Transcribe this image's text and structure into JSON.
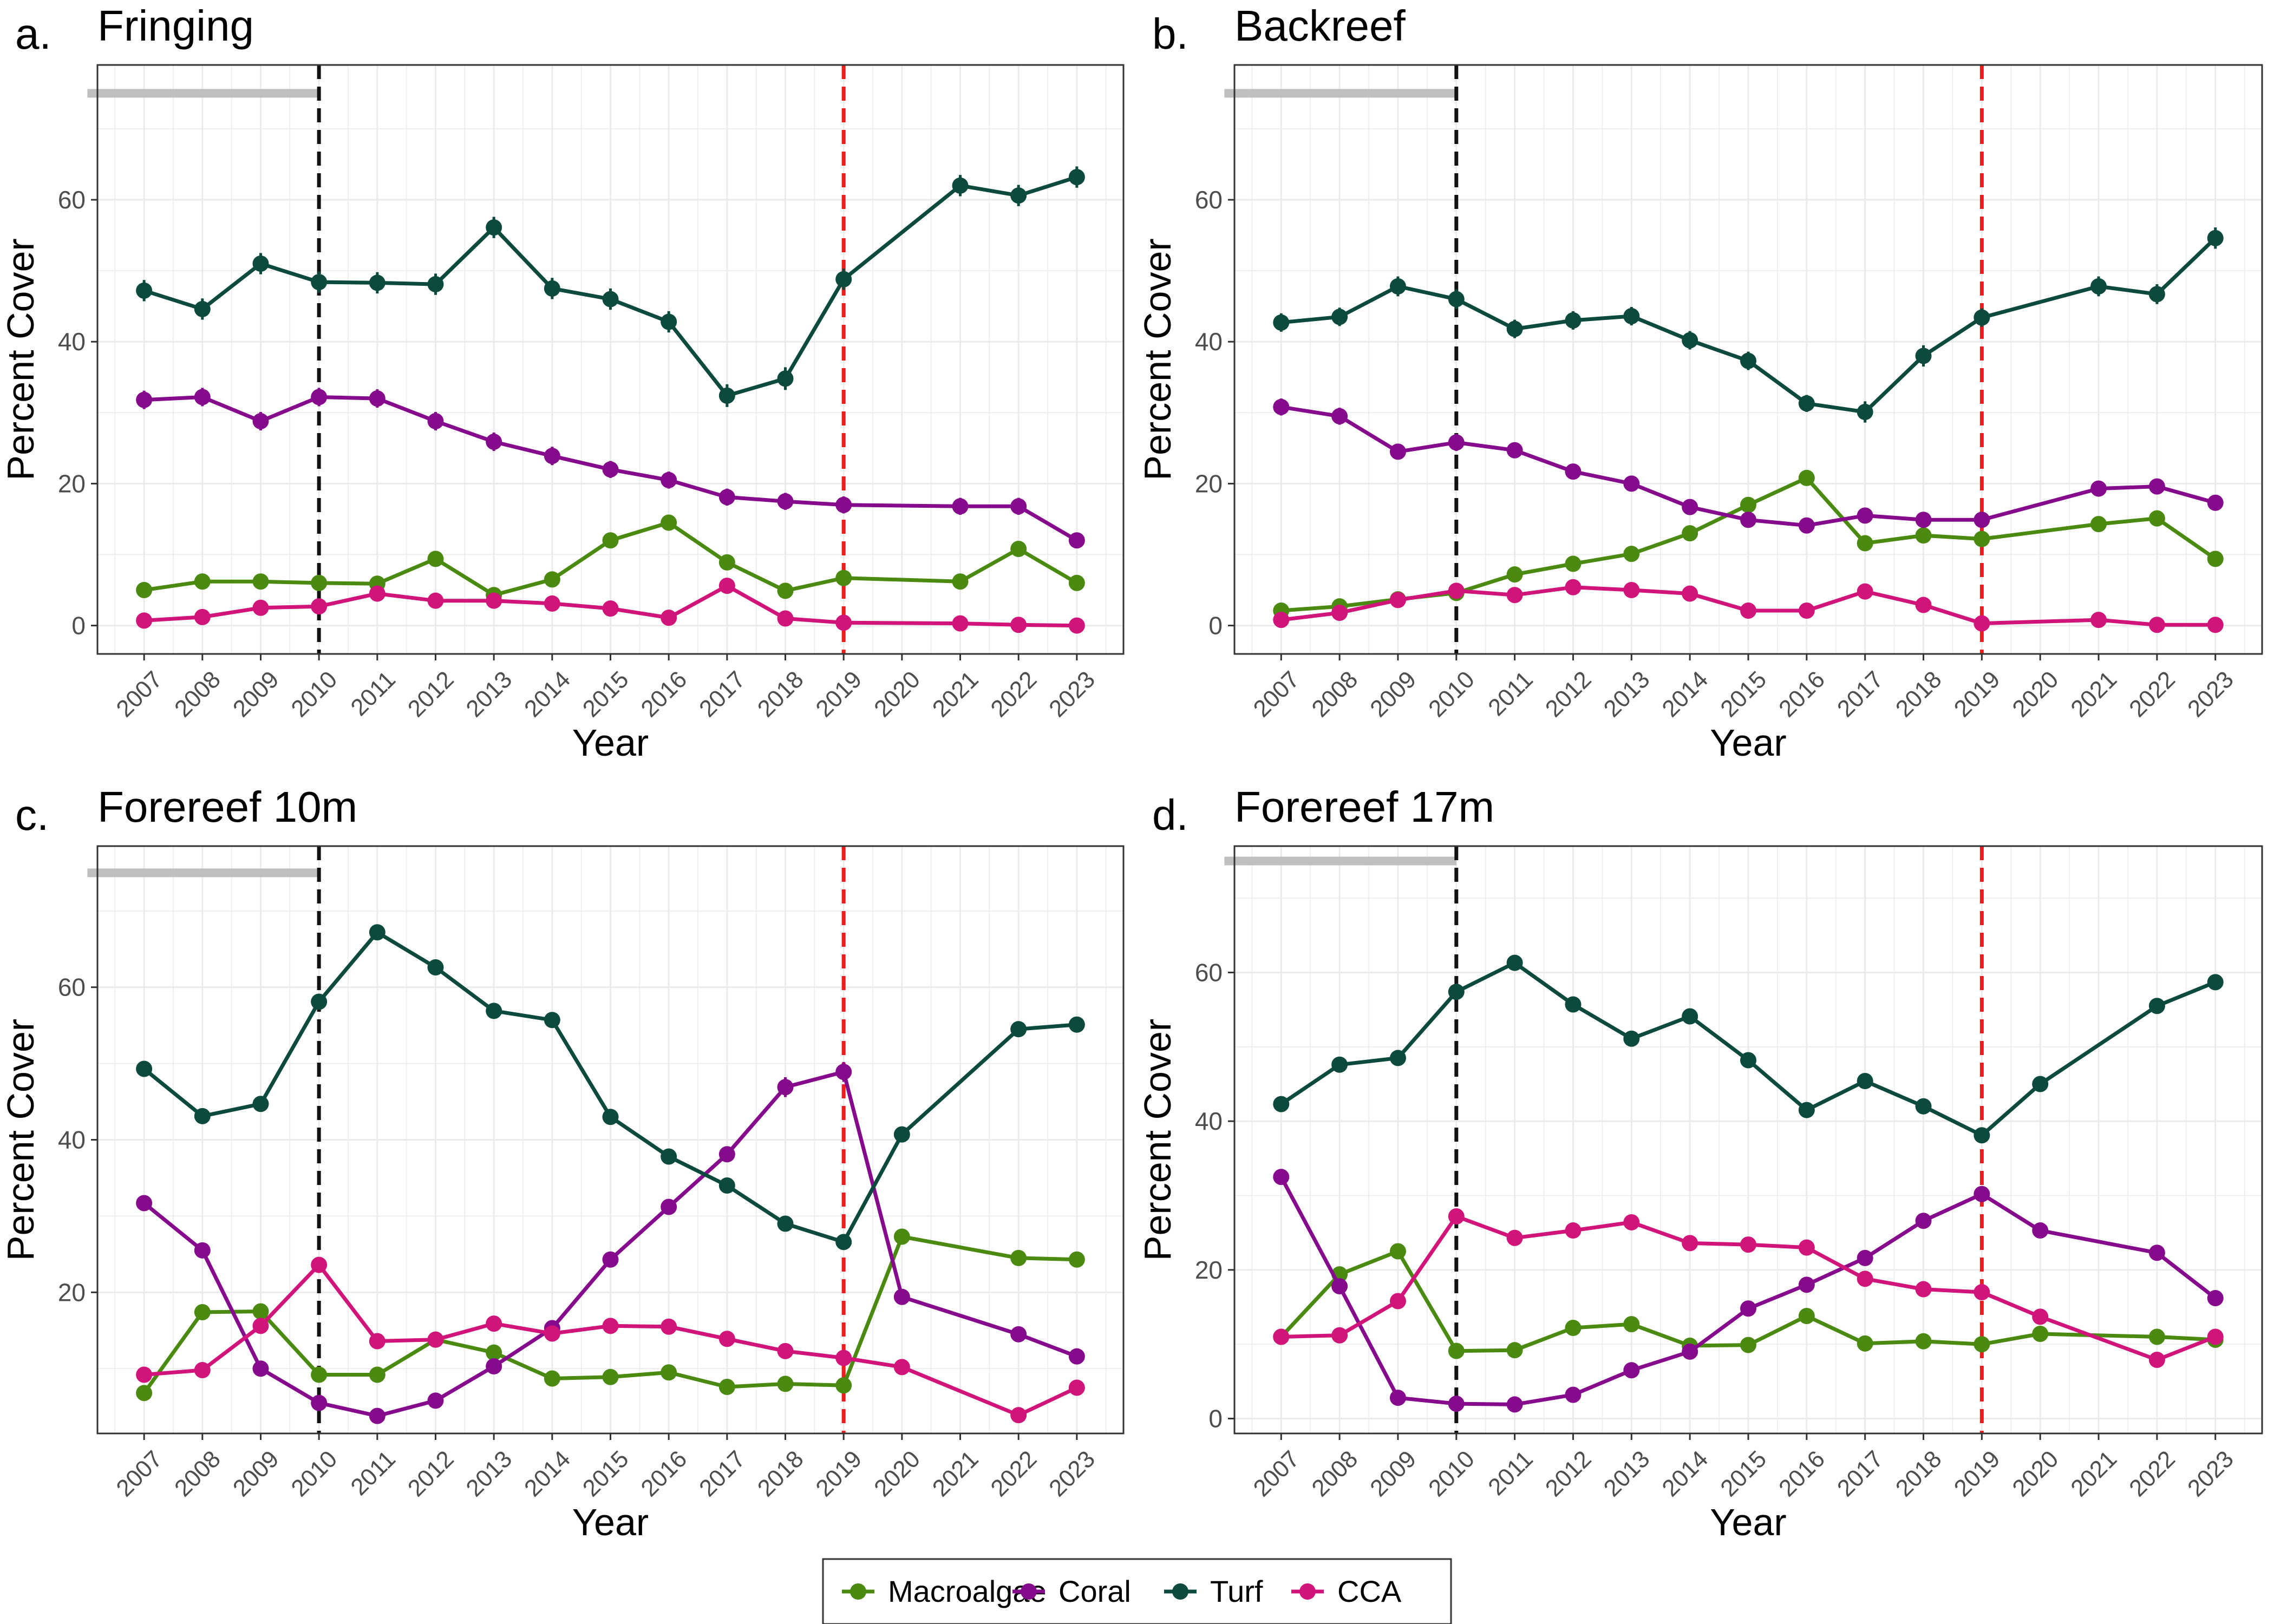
{
  "colors": {
    "series": {
      "Macroalgae": "#4a8a10",
      "Coral": "#860a8c",
      "Turf": "#0c4a3e",
      "CCA": "#d0147a"
    },
    "disturbance_line": "#111111",
    "event_line": "#ee1c1c",
    "period_bar": "#bfbfbf",
    "grid": "#ebebeb",
    "panel_border": "#333333"
  },
  "legend": {
    "position": "bottom-center",
    "entries": [
      "Macroalgae",
      "Coral",
      "Turf",
      "CCA"
    ]
  },
  "chart_data": [
    {
      "type": "line",
      "panel_letter": "a.",
      "title": "Fringing",
      "xlabel": "Year",
      "ylabel": "Percent Cover",
      "ylim": [
        -4,
        79
      ],
      "yticks": [
        0,
        20,
        40,
        60
      ],
      "xlim": [
        2006.2,
        2023.8
      ],
      "xticks": [
        "2007",
        "2008",
        "2009",
        "2010",
        "2011",
        "2012",
        "2013",
        "2014",
        "2015",
        "2016",
        "2017",
        "2018",
        "2019",
        "2020",
        "2021",
        "2022",
        "2023"
      ],
      "grid": true,
      "vlines": {
        "black_dashed": 2010,
        "red_dashed": 2019
      },
      "period_bar": {
        "x_start": 2006,
        "x_end": 2010,
        "y": 75
      },
      "series": [
        {
          "name": "Macroalgae",
          "x": [
            2007,
            2008,
            2009,
            2010,
            2011,
            2012,
            2013,
            2014,
            2015,
            2016,
            2017,
            2018,
            2019,
            2021,
            2022,
            2023
          ],
          "values": [
            5,
            6.2,
            6.2,
            6,
            5.9,
            9.4,
            4.3,
            6.5,
            12,
            14.5,
            8.9,
            4.9,
            6.7,
            6.2,
            10.8,
            6
          ],
          "error": [
            0.6,
            0.6,
            0.6,
            0.6,
            0.6,
            0.8,
            0.5,
            0.6,
            0.8,
            0.8,
            0.7,
            0.5,
            0.6,
            0.6,
            0.8,
            0.6
          ]
        },
        {
          "name": "Coral",
          "x": [
            2007,
            2008,
            2009,
            2010,
            2011,
            2012,
            2013,
            2014,
            2015,
            2016,
            2017,
            2018,
            2019,
            2021,
            2022,
            2023
          ],
          "values": [
            31.8,
            32.2,
            28.8,
            32.2,
            32,
            28.8,
            25.9,
            23.9,
            22,
            20.5,
            18.1,
            17.5,
            17,
            16.8,
            16.8,
            12
          ],
          "error": [
            1.3,
            1.3,
            1.3,
            1.3,
            1.3,
            1.3,
            1.3,
            1.3,
            1.2,
            1.2,
            1.2,
            1.2,
            1.2,
            1.2,
            1.2,
            1.0
          ]
        },
        {
          "name": "Turf",
          "x": [
            2007,
            2008,
            2009,
            2010,
            2011,
            2012,
            2013,
            2014,
            2015,
            2016,
            2017,
            2018,
            2019,
            2021,
            2022,
            2023
          ],
          "values": [
            47.2,
            44.6,
            51,
            48.4,
            48.3,
            48.1,
            56.1,
            47.5,
            46,
            42.8,
            32.4,
            34.8,
            48.8,
            62,
            60.6,
            63.2
          ],
          "error": [
            1.5,
            1.5,
            1.5,
            1.5,
            1.5,
            1.5,
            1.5,
            1.5,
            1.5,
            1.5,
            1.6,
            1.6,
            1.5,
            1.5,
            1.5,
            1.5
          ]
        },
        {
          "name": "CCA",
          "x": [
            2007,
            2008,
            2009,
            2010,
            2011,
            2012,
            2013,
            2014,
            2015,
            2016,
            2017,
            2018,
            2019,
            2021,
            2022,
            2023
          ],
          "values": [
            0.7,
            1.2,
            2.5,
            2.7,
            4.5,
            3.5,
            3.5,
            3.1,
            2.4,
            1.1,
            5.6,
            1,
            0.4,
            0.3,
            0.1,
            0
          ],
          "error": [
            0.3,
            0.3,
            0.4,
            0.4,
            0.5,
            0.4,
            0.4,
            0.4,
            0.4,
            0.3,
            0.5,
            0.3,
            0.2,
            0.2,
            0.1,
            0.1
          ]
        }
      ]
    },
    {
      "type": "line",
      "panel_letter": "b.",
      "title": "Backreef",
      "xlabel": "Year",
      "ylabel": "Percent Cover",
      "ylim": [
        -4,
        79
      ],
      "yticks": [
        0,
        20,
        40,
        60
      ],
      "xlim": [
        2006.2,
        2023.8
      ],
      "xticks": [
        "2007",
        "2008",
        "2009",
        "2010",
        "2011",
        "2012",
        "2013",
        "2014",
        "2015",
        "2016",
        "2017",
        "2018",
        "2019",
        "2020",
        "2021",
        "2022",
        "2023"
      ],
      "grid": true,
      "vlines": {
        "black_dashed": 2010,
        "red_dashed": 2019
      },
      "period_bar": {
        "x_start": 2006,
        "x_end": 2010,
        "y": 75
      },
      "series": [
        {
          "name": "Macroalgae",
          "x": [
            2007,
            2008,
            2009,
            2010,
            2011,
            2012,
            2013,
            2014,
            2015,
            2016,
            2017,
            2018,
            2019,
            2021,
            2022,
            2023
          ],
          "values": [
            2.1,
            2.7,
            3.7,
            4.6,
            7.2,
            8.7,
            10.1,
            13,
            17,
            20.8,
            11.6,
            12.7,
            12.2,
            14.3,
            15.1,
            9.4
          ],
          "error": [
            0.4,
            0.4,
            0.5,
            0.5,
            0.6,
            0.6,
            0.7,
            0.7,
            0.8,
            0.9,
            0.7,
            0.7,
            0.7,
            0.7,
            0.8,
            0.7
          ]
        },
        {
          "name": "Coral",
          "x": [
            2007,
            2008,
            2009,
            2010,
            2011,
            2012,
            2013,
            2014,
            2015,
            2016,
            2017,
            2018,
            2019,
            2021,
            2022,
            2023
          ],
          "values": [
            30.8,
            29.5,
            24.5,
            25.8,
            24.7,
            21.7,
            20,
            16.7,
            14.9,
            14.1,
            15.5,
            14.9,
            14.9,
            19.3,
            19.6,
            17.3
          ],
          "error": [
            1.2,
            1.2,
            1.1,
            1.2,
            1.1,
            1.1,
            1.0,
            1.0,
            0.9,
            0.9,
            0.9,
            0.9,
            0.9,
            1.0,
            1.0,
            1.0
          ]
        },
        {
          "name": "Turf",
          "x": [
            2007,
            2008,
            2009,
            2010,
            2011,
            2012,
            2013,
            2014,
            2015,
            2016,
            2017,
            2018,
            2019,
            2021,
            2022,
            2023
          ],
          "values": [
            42.7,
            43.5,
            47.8,
            46,
            41.8,
            43,
            43.6,
            40.2,
            37.3,
            31.3,
            30.1,
            38,
            43.4,
            47.8,
            46.7,
            54.6
          ],
          "error": [
            1.3,
            1.3,
            1.4,
            1.4,
            1.3,
            1.3,
            1.3,
            1.3,
            1.3,
            1.2,
            1.5,
            1.5,
            1.3,
            1.4,
            1.4,
            1.5
          ]
        },
        {
          "name": "CCA",
          "x": [
            2007,
            2008,
            2009,
            2010,
            2011,
            2012,
            2013,
            2014,
            2015,
            2016,
            2017,
            2018,
            2019,
            2021,
            2022,
            2023
          ],
          "values": [
            0.8,
            1.8,
            3.6,
            4.9,
            4.3,
            5.4,
            5,
            4.5,
            2.1,
            2.1,
            4.8,
            2.9,
            0.3,
            0.8,
            0.1,
            0.1
          ],
          "error": [
            0.3,
            0.4,
            0.5,
            0.5,
            0.5,
            0.5,
            0.5,
            0.5,
            0.4,
            0.4,
            0.5,
            0.4,
            0.2,
            0.3,
            0.1,
            0.1
          ]
        }
      ]
    },
    {
      "type": "line",
      "panel_letter": "c.",
      "title": "Forereef 10m",
      "xlabel": "Year",
      "ylabel": "Percent Cover",
      "ylim": [
        1.5,
        78.5
      ],
      "yticks": [
        20,
        40,
        60
      ],
      "xlim": [
        2006.2,
        2023.8
      ],
      "xticks": [
        "2007",
        "2008",
        "2009",
        "2010",
        "2011",
        "2012",
        "2013",
        "2014",
        "2015",
        "2016",
        "2017",
        "2018",
        "2019",
        "2020",
        "2021",
        "2022",
        "2023"
      ],
      "grid": true,
      "vlines": {
        "black_dashed": 2010,
        "red_dashed": 2019
      },
      "period_bar": {
        "x_start": 2006,
        "x_end": 2010,
        "y": 75
      },
      "series": [
        {
          "name": "Macroalgae",
          "x": [
            2007,
            2008,
            2009,
            2010,
            2011,
            2012,
            2013,
            2014,
            2015,
            2016,
            2017,
            2018,
            2019,
            2020,
            2022,
            2023
          ],
          "values": [
            6.8,
            17.4,
            17.5,
            9.2,
            9.2,
            13.8,
            12.1,
            8.7,
            8.9,
            9.5,
            7.6,
            8,
            7.8,
            27.3,
            24.5,
            24.3
          ],
          "error": [
            0.6,
            0.8,
            0.8,
            0.6,
            0.6,
            0.7,
            0.7,
            0.6,
            0.6,
            0.6,
            0.5,
            0.6,
            0.6,
            0.8,
            0.8,
            0.8
          ]
        },
        {
          "name": "Coral",
          "x": [
            2007,
            2008,
            2009,
            2010,
            2011,
            2012,
            2013,
            2014,
            2015,
            2016,
            2017,
            2018,
            2019,
            2020,
            2022,
            2023
          ],
          "values": [
            31.7,
            25.5,
            10,
            5.5,
            3.8,
            5.8,
            10.3,
            15.3,
            24.3,
            31.2,
            38.1,
            46.9,
            48.9,
            19.4,
            14.5,
            11.6
          ],
          "error": [
            0.8,
            0.8,
            0.7,
            0.6,
            0.5,
            0.6,
            0.7,
            0.8,
            0.8,
            0.8,
            0.8,
            1.3,
            1.3,
            0.8,
            0.7,
            0.7
          ]
        },
        {
          "name": "Turf",
          "x": [
            2007,
            2008,
            2009,
            2010,
            2011,
            2012,
            2013,
            2014,
            2015,
            2016,
            2017,
            2018,
            2019,
            2020,
            2022,
            2023
          ],
          "values": [
            49.3,
            43.1,
            44.7,
            58.1,
            67.2,
            62.6,
            56.9,
            55.7,
            43,
            37.8,
            34,
            29,
            26.6,
            40.7,
            54.5,
            55.1
          ],
          "error": [
            0.8,
            0.8,
            0.8,
            0.9,
            0.9,
            0.9,
            0.9,
            0.8,
            0.8,
            0.8,
            0.8,
            0.8,
            0.8,
            0.9,
            0.9,
            0.9
          ]
        },
        {
          "name": "CCA",
          "x": [
            2007,
            2008,
            2009,
            2010,
            2011,
            2012,
            2013,
            2014,
            2015,
            2016,
            2017,
            2018,
            2019,
            2020,
            2022,
            2023
          ],
          "values": [
            9.2,
            9.8,
            15.6,
            23.6,
            13.6,
            13.8,
            15.9,
            14.6,
            15.6,
            15.5,
            13.9,
            12.3,
            11.4,
            10.2,
            3.9,
            7.5
          ],
          "error": [
            0.6,
            0.6,
            0.7,
            0.8,
            0.7,
            0.7,
            0.7,
            0.7,
            0.7,
            0.7,
            0.7,
            0.7,
            0.6,
            0.6,
            0.4,
            0.5
          ]
        }
      ]
    },
    {
      "type": "line",
      "panel_letter": "d.",
      "title": "Forereef 17m",
      "xlabel": "Year",
      "ylabel": "Percent Cover",
      "ylim": [
        -2,
        77
      ],
      "yticks": [
        0,
        20,
        40,
        60
      ],
      "xlim": [
        2006.2,
        2023.8
      ],
      "xticks": [
        "2007",
        "2008",
        "2009",
        "2010",
        "2011",
        "2012",
        "2013",
        "2014",
        "2015",
        "2016",
        "2017",
        "2018",
        "2019",
        "2020",
        "2021",
        "2022",
        "2023"
      ],
      "grid": true,
      "vlines": {
        "black_dashed": 2010,
        "red_dashed": 2019
      },
      "period_bar": {
        "x_start": 2006,
        "x_end": 2010,
        "y": 75
      },
      "series": [
        {
          "name": "Macroalgae",
          "x": [
            2007,
            2008,
            2009,
            2010,
            2011,
            2012,
            2013,
            2014,
            2015,
            2016,
            2017,
            2018,
            2019,
            2020,
            2022,
            2023
          ],
          "values": [
            11,
            19.4,
            22.5,
            9.1,
            9.2,
            12.2,
            12.7,
            9.8,
            9.9,
            13.8,
            10.1,
            10.4,
            10,
            11.4,
            11,
            10.6
          ],
          "error": [
            0.6,
            0.7,
            0.8,
            0.6,
            0.6,
            0.6,
            0.7,
            0.6,
            0.6,
            0.7,
            0.6,
            0.6,
            0.6,
            0.6,
            0.6,
            0.6
          ]
        },
        {
          "name": "Coral",
          "x": [
            2007,
            2008,
            2009,
            2010,
            2011,
            2012,
            2013,
            2014,
            2015,
            2016,
            2017,
            2018,
            2019,
            2020,
            2022,
            2023
          ],
          "values": [
            32.5,
            17.8,
            2.8,
            2,
            1.9,
            3.2,
            6.5,
            9,
            14.8,
            18,
            21.6,
            26.6,
            30.2,
            25.3,
            22.3,
            16.2
          ],
          "error": [
            0.8,
            0.7,
            0.4,
            0.4,
            0.4,
            0.4,
            0.5,
            0.6,
            0.7,
            0.7,
            0.7,
            0.8,
            0.8,
            0.8,
            0.7,
            0.7
          ]
        },
        {
          "name": "Turf",
          "x": [
            2007,
            2008,
            2009,
            2010,
            2011,
            2012,
            2013,
            2014,
            2015,
            2016,
            2017,
            2018,
            2019,
            2020,
            2022,
            2023
          ],
          "values": [
            42.3,
            47.6,
            48.5,
            57.4,
            61.3,
            55.7,
            51.1,
            54.1,
            48.2,
            41.5,
            45.4,
            42,
            38.1,
            45,
            55.5,
            58.7
          ],
          "error": [
            0.8,
            0.8,
            0.8,
            0.9,
            0.9,
            0.9,
            0.8,
            0.9,
            0.8,
            0.8,
            0.8,
            0.8,
            0.8,
            0.8,
            0.9,
            0.9
          ]
        },
        {
          "name": "CCA",
          "x": [
            2007,
            2008,
            2009,
            2010,
            2011,
            2012,
            2013,
            2014,
            2015,
            2016,
            2017,
            2018,
            2019,
            2020,
            2022,
            2023
          ],
          "values": [
            11,
            11.2,
            15.8,
            27.2,
            24.3,
            25.3,
            26.4,
            23.6,
            23.4,
            23,
            18.8,
            17.4,
            17,
            13.7,
            7.9,
            11
          ],
          "error": [
            0.6,
            0.6,
            0.7,
            0.8,
            0.8,
            0.8,
            0.8,
            0.8,
            0.8,
            0.8,
            0.7,
            0.7,
            0.7,
            0.7,
            0.5,
            0.6
          ]
        }
      ]
    }
  ]
}
